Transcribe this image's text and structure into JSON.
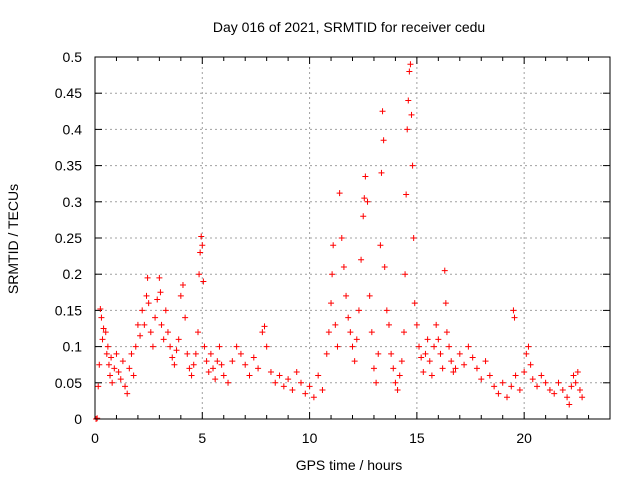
{
  "chart_data": {
    "type": "scatter",
    "title": "Day 016 of 2021, SRMTID for receiver cedu",
    "xlabel": "GPS time / hours",
    "ylabel": "SRMTID / TECUs",
    "xlim": [
      0,
      24
    ],
    "ylim": [
      0,
      0.5
    ],
    "xticks": [
      0,
      5,
      10,
      15,
      20
    ],
    "xtick_labels": [
      "0",
      "5",
      "10",
      "15",
      "20"
    ],
    "yticks": [
      0,
      0.05,
      0.1,
      0.15,
      0.2,
      0.25,
      0.3,
      0.35,
      0.4,
      0.45,
      0.5
    ],
    "ytick_labels": [
      "0",
      "0.05",
      "0.1",
      "0.15",
      "0.2",
      "0.25",
      "0.3",
      "0.35",
      "0.4",
      "0.45",
      "0.5"
    ],
    "grid": true,
    "marker": "+",
    "series": [
      {
        "name": "SRMTID",
        "color": "#ff0000",
        "points": [
          [
            0.05,
            0.0
          ],
          [
            0.1,
            0.001
          ],
          [
            0.15,
            0.045
          ],
          [
            0.2,
            0.075
          ],
          [
            0.25,
            0.152
          ],
          [
            0.3,
            0.14
          ],
          [
            0.35,
            0.11
          ],
          [
            0.4,
            0.125
          ],
          [
            0.5,
            0.12
          ],
          [
            0.55,
            0.09
          ],
          [
            0.6,
            0.1
          ],
          [
            0.65,
            0.075
          ],
          [
            0.7,
            0.06
          ],
          [
            0.75,
            0.085
          ],
          [
            0.8,
            0.05
          ],
          [
            0.9,
            0.07
          ],
          [
            1.0,
            0.09
          ],
          [
            1.1,
            0.065
          ],
          [
            1.2,
            0.055
          ],
          [
            1.3,
            0.08
          ],
          [
            1.4,
            0.045
          ],
          [
            1.5,
            0.035
          ],
          [
            1.6,
            0.07
          ],
          [
            1.7,
            0.09
          ],
          [
            1.8,
            0.06
          ],
          [
            1.9,
            0.1
          ],
          [
            2.0,
            0.13
          ],
          [
            2.1,
            0.115
          ],
          [
            2.2,
            0.15
          ],
          [
            2.3,
            0.13
          ],
          [
            2.4,
            0.17
          ],
          [
            2.45,
            0.195
          ],
          [
            2.5,
            0.16
          ],
          [
            2.6,
            0.12
          ],
          [
            2.7,
            0.1
          ],
          [
            2.8,
            0.14
          ],
          [
            2.9,
            0.165
          ],
          [
            3.0,
            0.195
          ],
          [
            3.05,
            0.175
          ],
          [
            3.1,
            0.13
          ],
          [
            3.2,
            0.11
          ],
          [
            3.3,
            0.15
          ],
          [
            3.4,
            0.12
          ],
          [
            3.5,
            0.1
          ],
          [
            3.6,
            0.085
          ],
          [
            3.7,
            0.075
          ],
          [
            3.8,
            0.095
          ],
          [
            3.9,
            0.11
          ],
          [
            4.0,
            0.17
          ],
          [
            4.1,
            0.185
          ],
          [
            4.2,
            0.14
          ],
          [
            4.3,
            0.09
          ],
          [
            4.4,
            0.07
          ],
          [
            4.5,
            0.06
          ],
          [
            4.6,
            0.075
          ],
          [
            4.7,
            0.09
          ],
          [
            4.8,
            0.12
          ],
          [
            4.85,
            0.2
          ],
          [
            4.9,
            0.23
          ],
          [
            4.95,
            0.252
          ],
          [
            5.0,
            0.24
          ],
          [
            5.05,
            0.19
          ],
          [
            5.1,
            0.1
          ],
          [
            5.2,
            0.08
          ],
          [
            5.3,
            0.065
          ],
          [
            5.4,
            0.09
          ],
          [
            5.5,
            0.07
          ],
          [
            5.6,
            0.055
          ],
          [
            5.7,
            0.08
          ],
          [
            5.8,
            0.1
          ],
          [
            5.9,
            0.075
          ],
          [
            6.0,
            0.06
          ],
          [
            6.2,
            0.05
          ],
          [
            6.4,
            0.08
          ],
          [
            6.6,
            0.1
          ],
          [
            6.8,
            0.09
          ],
          [
            7.0,
            0.075
          ],
          [
            7.2,
            0.06
          ],
          [
            7.4,
            0.085
          ],
          [
            7.6,
            0.07
          ],
          [
            7.8,
            0.12
          ],
          [
            7.9,
            0.128
          ],
          [
            8.0,
            0.1
          ],
          [
            8.2,
            0.065
          ],
          [
            8.4,
            0.05
          ],
          [
            8.6,
            0.06
          ],
          [
            8.8,
            0.045
          ],
          [
            9.0,
            0.055
          ],
          [
            9.2,
            0.04
          ],
          [
            9.4,
            0.065
          ],
          [
            9.6,
            0.05
          ],
          [
            9.8,
            0.035
          ],
          [
            10.0,
            0.045
          ],
          [
            10.2,
            0.03
          ],
          [
            10.4,
            0.06
          ],
          [
            10.6,
            0.04
          ],
          [
            10.8,
            0.09
          ],
          [
            10.9,
            0.12
          ],
          [
            11.0,
            0.16
          ],
          [
            11.05,
            0.2
          ],
          [
            11.1,
            0.24
          ],
          [
            11.2,
            0.13
          ],
          [
            11.3,
            0.1
          ],
          [
            11.4,
            0.312
          ],
          [
            11.5,
            0.25
          ],
          [
            11.6,
            0.21
          ],
          [
            11.7,
            0.17
          ],
          [
            11.8,
            0.14
          ],
          [
            11.9,
            0.12
          ],
          [
            12.0,
            0.1
          ],
          [
            12.1,
            0.08
          ],
          [
            12.2,
            0.11
          ],
          [
            12.3,
            0.15
          ],
          [
            12.4,
            0.22
          ],
          [
            12.5,
            0.28
          ],
          [
            12.55,
            0.305
          ],
          [
            12.6,
            0.335
          ],
          [
            12.7,
            0.3
          ],
          [
            12.8,
            0.17
          ],
          [
            12.9,
            0.12
          ],
          [
            13.0,
            0.07
          ],
          [
            13.1,
            0.05
          ],
          [
            13.2,
            0.09
          ],
          [
            13.3,
            0.24
          ],
          [
            13.35,
            0.34
          ],
          [
            13.4,
            0.425
          ],
          [
            13.45,
            0.385
          ],
          [
            13.5,
            0.21
          ],
          [
            13.6,
            0.15
          ],
          [
            13.7,
            0.13
          ],
          [
            13.8,
            0.09
          ],
          [
            13.9,
            0.07
          ],
          [
            14.0,
            0.05
          ],
          [
            14.1,
            0.04
          ],
          [
            14.2,
            0.06
          ],
          [
            14.3,
            0.08
          ],
          [
            14.4,
            0.12
          ],
          [
            14.45,
            0.2
          ],
          [
            14.5,
            0.31
          ],
          [
            14.55,
            0.4
          ],
          [
            14.6,
            0.44
          ],
          [
            14.65,
            0.48
          ],
          [
            14.7,
            0.49
          ],
          [
            14.75,
            0.42
          ],
          [
            14.8,
            0.35
          ],
          [
            14.85,
            0.25
          ],
          [
            14.9,
            0.16
          ],
          [
            15.0,
            0.13
          ],
          [
            15.1,
            0.1
          ],
          [
            15.2,
            0.085
          ],
          [
            15.3,
            0.065
          ],
          [
            15.4,
            0.09
          ],
          [
            15.5,
            0.11
          ],
          [
            15.6,
            0.08
          ],
          [
            15.7,
            0.06
          ],
          [
            15.8,
            0.1
          ],
          [
            15.9,
            0.13
          ],
          [
            16.0,
            0.11
          ],
          [
            16.1,
            0.09
          ],
          [
            16.2,
            0.07
          ],
          [
            16.3,
            0.205
          ],
          [
            16.35,
            0.16
          ],
          [
            16.4,
            0.12
          ],
          [
            16.5,
            0.1
          ],
          [
            16.6,
            0.08
          ],
          [
            16.7,
            0.065
          ],
          [
            16.8,
            0.07
          ],
          [
            17.0,
            0.09
          ],
          [
            17.2,
            0.075
          ],
          [
            17.4,
            0.1
          ],
          [
            17.6,
            0.085
          ],
          [
            17.8,
            0.07
          ],
          [
            18.0,
            0.055
          ],
          [
            18.2,
            0.08
          ],
          [
            18.4,
            0.06
          ],
          [
            18.6,
            0.045
          ],
          [
            18.8,
            0.035
          ],
          [
            19.0,
            0.05
          ],
          [
            19.2,
            0.03
          ],
          [
            19.4,
            0.045
          ],
          [
            19.5,
            0.15
          ],
          [
            19.55,
            0.14
          ],
          [
            19.6,
            0.06
          ],
          [
            19.8,
            0.04
          ],
          [
            20.0,
            0.065
          ],
          [
            20.1,
            0.09
          ],
          [
            20.2,
            0.1
          ],
          [
            20.3,
            0.075
          ],
          [
            20.4,
            0.055
          ],
          [
            20.6,
            0.045
          ],
          [
            20.8,
            0.06
          ],
          [
            21.0,
            0.05
          ],
          [
            21.2,
            0.04
          ],
          [
            21.4,
            0.035
          ],
          [
            21.6,
            0.05
          ],
          [
            21.8,
            0.04
          ],
          [
            22.0,
            0.03
          ],
          [
            22.1,
            0.02
          ],
          [
            22.2,
            0.045
          ],
          [
            22.3,
            0.06
          ],
          [
            22.4,
            0.05
          ],
          [
            22.5,
            0.065
          ],
          [
            22.6,
            0.04
          ],
          [
            22.7,
            0.03
          ]
        ]
      }
    ]
  }
}
